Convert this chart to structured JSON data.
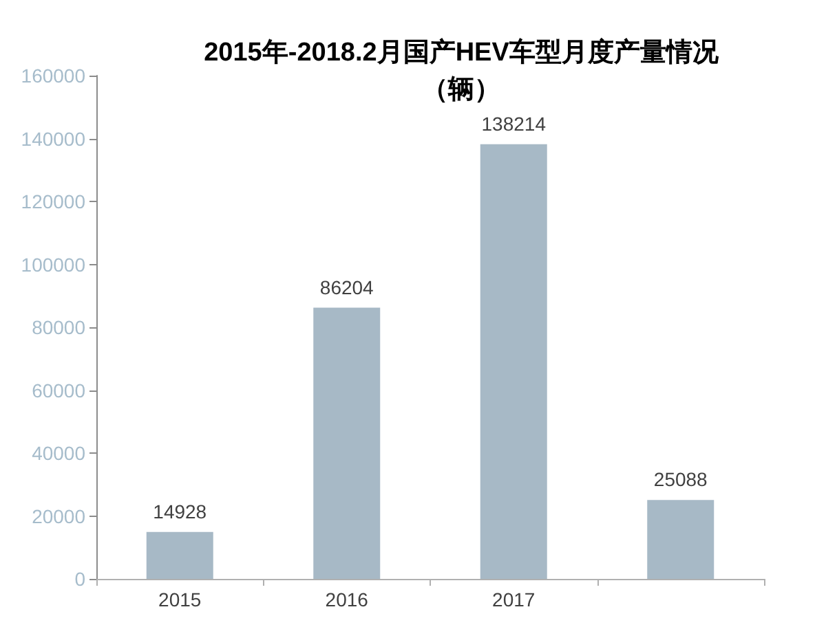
{
  "chart_data": {
    "type": "bar",
    "title": "2015年-2018.2月国产HEV车型月度产量情况",
    "subtitle": "（辆）",
    "categories": [
      "2015",
      "2016",
      "2017",
      null
    ],
    "values": [
      14928,
      86204,
      138214,
      25088
    ],
    "color": "#a7b9c6",
    "ylim": [
      0,
      160000
    ],
    "yticks": [
      0,
      20000,
      40000,
      60000,
      80000,
      100000,
      120000,
      140000,
      160000
    ],
    "data_labels": true
  }
}
